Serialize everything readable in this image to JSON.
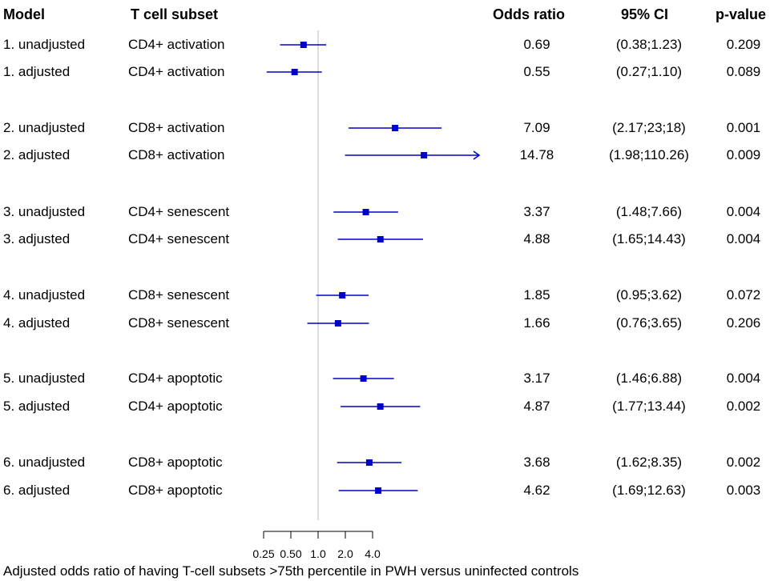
{
  "headers": {
    "model": "Model",
    "subset": "T cell subset",
    "or": "Odds ratio",
    "ci": "95% CI",
    "p": "p-value"
  },
  "accent_color": "#0000cc",
  "chart_data": {
    "type": "forest",
    "xscale": "log2",
    "xlim": [
      0.25,
      4.0
    ],
    "reference_line": 1.0,
    "xticks": [
      0.25,
      0.5,
      1.0,
      2.0,
      4.0
    ],
    "xtick_labels": [
      "0.25",
      "0.50",
      "1.0",
      "2.0",
      "4.0"
    ],
    "xlabel": "Adjusted odds ratio of having T-cell subsets >75th percentile in PWH versus uninfected controls",
    "rows": [
      {
        "model": "1. unadjusted",
        "subset": "CD4+ activation",
        "or": 0.69,
        "lo": 0.38,
        "hi": 1.23,
        "or_text": "0.69",
        "ci_text": "(0.38;1.23)",
        "p": "0.209",
        "arrow": false
      },
      {
        "model": "1. adjusted",
        "subset": "CD4+ activation",
        "or": 0.55,
        "lo": 0.27,
        "hi": 1.1,
        "or_text": "0.55",
        "ci_text": "(0.27;1.10)",
        "p": "0.089",
        "arrow": false
      },
      {
        "model": "2. unadjusted",
        "subset": "CD8+ activation",
        "or": 7.09,
        "lo": 2.17,
        "hi": 23.18,
        "or_text": "7.09",
        "ci_text": "(2.17;23;18)",
        "p": "0.001",
        "arrow": false
      },
      {
        "model": "2. adjusted",
        "subset": "CD8+ activation",
        "or": 14.78,
        "lo": 1.98,
        "hi": 110.26,
        "or_text": "14.78",
        "ci_text": "(1.98;110.26)",
        "p": "0.009",
        "arrow": true
      },
      {
        "model": "3. unadjusted",
        "subset": "CD4+ senescent",
        "or": 3.37,
        "lo": 1.48,
        "hi": 7.66,
        "or_text": "3.37",
        "ci_text": "(1.48;7.66)",
        "p": "0.004",
        "arrow": false
      },
      {
        "model": "3. adjusted",
        "subset": "CD4+ senescent",
        "or": 4.88,
        "lo": 1.65,
        "hi": 14.43,
        "or_text": "4.88",
        "ci_text": "(1.65;14.43)",
        "p": "0.004",
        "arrow": false
      },
      {
        "model": "4. unadjusted",
        "subset": "CD8+ senescent",
        "or": 1.85,
        "lo": 0.95,
        "hi": 3.62,
        "or_text": "1.85",
        "ci_text": "(0.95;3.62)",
        "p": "0.072",
        "arrow": false
      },
      {
        "model": "4. adjusted",
        "subset": "CD8+ senescent",
        "or": 1.66,
        "lo": 0.76,
        "hi": 3.65,
        "or_text": "1.66",
        "ci_text": "(0.76;3.65)",
        "p": "0.206",
        "arrow": false
      },
      {
        "model": "5. unadjusted",
        "subset": "CD4+ apoptotic",
        "or": 3.17,
        "lo": 1.46,
        "hi": 6.88,
        "or_text": "3.17",
        "ci_text": "(1.46;6.88)",
        "p": "0.004",
        "arrow": false
      },
      {
        "model": "5. adjusted",
        "subset": "CD4+ apoptotic",
        "or": 4.87,
        "lo": 1.77,
        "hi": 13.44,
        "or_text": "4.87",
        "ci_text": "(1.77;13.44)",
        "p": "0.002",
        "arrow": false
      },
      {
        "model": "6. unadjusted",
        "subset": "CD8+ apoptotic",
        "or": 3.68,
        "lo": 1.62,
        "hi": 8.35,
        "or_text": "3.68",
        "ci_text": "(1.62;8.35)",
        "p": "0.002",
        "arrow": false
      },
      {
        "model": "6. adjusted",
        "subset": "CD8+ apoptotic",
        "or": 4.62,
        "lo": 1.69,
        "hi": 12.63,
        "or_text": "4.62",
        "ci_text": "(1.69;12.63)",
        "p": "0.003",
        "arrow": false
      }
    ]
  }
}
